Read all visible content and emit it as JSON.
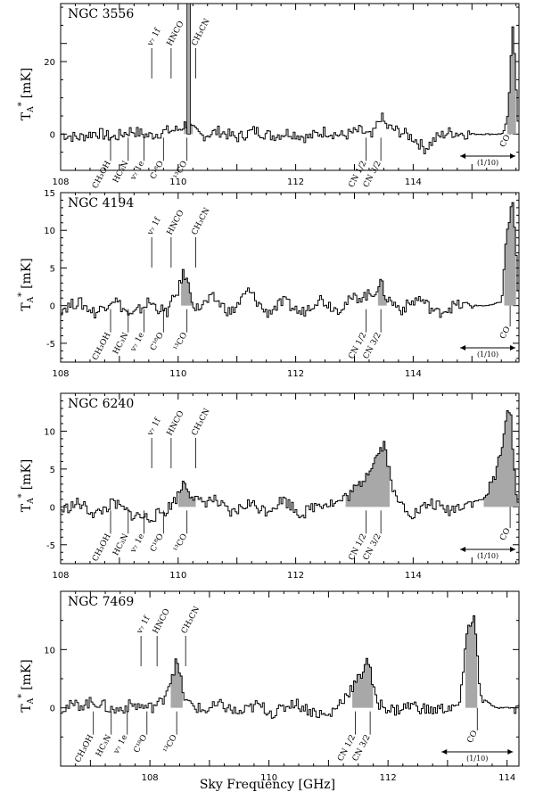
{
  "figure": {
    "xlabel": "Sky Frequency [GHz]",
    "ylabel_main": "T",
    "ylabel_sub": "A",
    "ylabel_sup": "*",
    "ylabel_unit": "[mK]"
  },
  "chart_data": [
    {
      "type": "line",
      "title": "NGC 3556",
      "xlim": [
        108,
        115.8
      ],
      "ylim": [
        -10,
        36
      ],
      "xticks": [
        108,
        110,
        112,
        114
      ],
      "yticks": [
        0,
        20
      ],
      "arrow_range": [
        114.8,
        116.0
      ],
      "arrow_note": "(1/10)",
      "series": [
        {
          "x": [
            108.0,
            108.3,
            108.6,
            108.9,
            109.2,
            109.5,
            109.8,
            110.0,
            110.15,
            110.25,
            110.4,
            110.7,
            111.0,
            111.3,
            111.6,
            111.9,
            112.2,
            112.5,
            112.8,
            113.1,
            113.3,
            113.45,
            113.55,
            113.8,
            114.0,
            114.2,
            114.4,
            114.6,
            115.0,
            115.3,
            115.5,
            115.6,
            115.7,
            115.8
          ],
          "values": [
            0,
            -1,
            0.5,
            -1,
            1,
            -0.5,
            0.8,
            1.2,
            3,
            1,
            -0.5,
            0.8,
            -1,
            1,
            -0.5,
            0.5,
            -1,
            0.8,
            -0.5,
            1,
            -1,
            5,
            2,
            0.5,
            -1,
            -4,
            -1,
            0.5,
            0,
            0,
            0,
            2,
            30,
            0
          ]
        }
      ],
      "fill_regions": [
        [
          110.1,
          110.25
        ],
        [
          115.6,
          115.75
        ]
      ],
      "tall_peaks": [
        {
          "x": 110.18,
          "value": 36
        }
      ],
      "labels_above": [
        {
          "text": "v₇ 1f",
          "x": 109.55
        },
        {
          "text": "HNCO",
          "x": 109.88
        },
        {
          "text": "CH₃CN",
          "x": 110.3
        }
      ],
      "labels_below": [
        {
          "text": "CH₃OH",
          "x": 108.85
        },
        {
          "text": "HC₃N",
          "x": 109.15
        },
        {
          "text": "v₇ 1e",
          "x": 109.42
        },
        {
          "text": "C¹⁸O",
          "x": 109.75
        },
        {
          "text": "¹³CO",
          "x": 110.15
        },
        {
          "text": "CN 1/2",
          "x": 113.2
        },
        {
          "text": "CN 3/2",
          "x": 113.45
        },
        {
          "text": "CO",
          "x": 115.65
        }
      ]
    },
    {
      "type": "line",
      "title": "NGC 4194",
      "xlim": [
        108,
        115.8
      ],
      "ylim": [
        -7.5,
        15
      ],
      "xticks": [
        108,
        110,
        112,
        114
      ],
      "yticks": [
        -5,
        0,
        5,
        10,
        15
      ],
      "arrow_range": [
        114.8,
        116.0
      ],
      "arrow_note": "(1/10)",
      "series": [
        {
          "x": [
            108.0,
            108.3,
            108.6,
            108.9,
            109.2,
            109.5,
            109.8,
            110.0,
            110.1,
            110.2,
            110.3,
            110.6,
            110.9,
            111.2,
            111.5,
            111.8,
            112.1,
            112.4,
            112.7,
            113.0,
            113.3,
            113.45,
            113.55,
            113.8,
            114.1,
            114.4,
            114.7,
            115.0,
            115.3,
            115.5,
            115.6,
            115.7,
            115.8
          ],
          "values": [
            -0.5,
            0.5,
            -1,
            1,
            -1.5,
            0.5,
            -1,
            2,
            4.5,
            2,
            -0.5,
            1,
            -1,
            2,
            -1,
            0.5,
            -1,
            1,
            -0.5,
            1,
            1.5,
            3,
            1,
            -0.5,
            1,
            -1,
            0,
            0,
            0,
            0.5,
            10,
            14,
            0
          ]
        }
      ],
      "fill_regions": [
        [
          110.05,
          110.25
        ],
        [
          113.4,
          113.55
        ],
        [
          115.55,
          115.75
        ]
      ],
      "labels_above": [
        {
          "text": "v₇ 1f",
          "x": 109.55
        },
        {
          "text": "HNCO",
          "x": 109.88
        },
        {
          "text": "CH₃CN",
          "x": 110.3
        }
      ],
      "labels_below": [
        {
          "text": "CH₃OH",
          "x": 108.85
        },
        {
          "text": "HC₃N",
          "x": 109.15
        },
        {
          "text": "v₇ 1e",
          "x": 109.42
        },
        {
          "text": "C¹⁸O",
          "x": 109.75
        },
        {
          "text": "¹³CO",
          "x": 110.15
        },
        {
          "text": "CN 1/2",
          "x": 113.2
        },
        {
          "text": "CN 3/2",
          "x": 113.45
        },
        {
          "text": "CO",
          "x": 115.65
        }
      ]
    },
    {
      "type": "line",
      "title": "NGC 6240",
      "xlim": [
        108,
        115.8
      ],
      "ylim": [
        -7.5,
        15
      ],
      "xticks": [
        108,
        110,
        112,
        114
      ],
      "yticks": [
        -5,
        0,
        5,
        10
      ],
      "arrow_range": [
        114.8,
        116.0
      ],
      "arrow_note": "(1/10)",
      "series": [
        {
          "x": [
            108.0,
            108.3,
            108.6,
            108.9,
            109.2,
            109.5,
            109.8,
            110.0,
            110.1,
            110.2,
            110.35,
            110.6,
            110.9,
            111.2,
            111.5,
            111.8,
            112.1,
            112.4,
            112.7,
            112.9,
            113.1,
            113.25,
            113.4,
            113.5,
            113.7,
            114.0,
            114.3,
            114.6,
            114.9,
            115.2,
            115.4,
            115.55,
            115.65,
            115.75,
            115.8
          ],
          "values": [
            -0.5,
            0.5,
            -1,
            0.5,
            -1,
            -1.5,
            -0.5,
            1.5,
            3.5,
            2,
            0.5,
            1,
            -1,
            0.5,
            -0.5,
            1,
            -1,
            0.5,
            0.5,
            1.5,
            3,
            5,
            7,
            8.5,
            1,
            -1,
            0.5,
            -0.5,
            0.5,
            1,
            4,
            10,
            13.5,
            2,
            0
          ]
        }
      ],
      "fill_regions": [
        [
          110.0,
          110.3
        ],
        [
          112.85,
          113.6
        ],
        [
          115.2,
          115.8
        ]
      ],
      "labels_above": [
        {
          "text": "v₇ 1f",
          "x": 109.55
        },
        {
          "text": "HNCO",
          "x": 109.88
        },
        {
          "text": "CH₃CN",
          "x": 110.3
        }
      ],
      "labels_below": [
        {
          "text": "CH₃OH",
          "x": 108.85
        },
        {
          "text": "HC₃N",
          "x": 109.15
        },
        {
          "text": "v₇ 1e",
          "x": 109.42
        },
        {
          "text": "C¹⁸O",
          "x": 109.75
        },
        {
          "text": "¹³CO",
          "x": 110.15
        },
        {
          "text": "CN 1/2",
          "x": 113.2
        },
        {
          "text": "CN 3/2",
          "x": 113.45
        },
        {
          "text": "CO",
          "x": 115.65
        }
      ]
    },
    {
      "type": "line",
      "title": "NGC 7469",
      "xlim": [
        106.5,
        114.2
      ],
      "ylim": [
        -10,
        20
      ],
      "xticks": [
        108,
        110,
        112,
        114
      ],
      "yticks": [
        0,
        10
      ],
      "arrow_range": [
        112.9,
        114.1
      ],
      "arrow_note": "(1/10)",
      "series": [
        {
          "x": [
            106.5,
            106.8,
            107.1,
            107.4,
            107.7,
            108.0,
            108.2,
            108.35,
            108.45,
            108.6,
            108.9,
            109.2,
            109.5,
            109.8,
            110.1,
            110.4,
            110.7,
            111.0,
            111.2,
            111.4,
            111.55,
            111.65,
            111.8,
            112.1,
            112.4,
            112.7,
            113.0,
            113.2,
            113.35,
            113.45,
            113.55,
            113.8,
            114.0,
            114.2
          ],
          "values": [
            0,
            0.5,
            1,
            -0.5,
            0.5,
            0,
            1,
            5,
            8,
            1,
            -0.5,
            0.5,
            -1,
            0.5,
            -1,
            1,
            -0.5,
            -1.5,
            1,
            3.5,
            5.5,
            9,
            1,
            -0.5,
            0.5,
            -0.5,
            0,
            0.5,
            14,
            16,
            2,
            0,
            0,
            0
          ]
        }
      ],
      "fill_regions": [
        [
          108.35,
          108.55
        ],
        [
          111.4,
          111.75
        ],
        [
          113.3,
          113.5
        ]
      ],
      "labels_above": [
        {
          "text": "v₇ 1f",
          "x": 107.85
        },
        {
          "text": "HNCO",
          "x": 108.12
        },
        {
          "text": "CH₃CN",
          "x": 108.6
        }
      ],
      "labels_below": [
        {
          "text": "CH₃OH",
          "x": 107.05
        },
        {
          "text": "HC₃N",
          "x": 107.35
        },
        {
          "text": "v₇ 1e",
          "x": 107.62
        },
        {
          "text": "C¹⁸O",
          "x": 107.95
        },
        {
          "text": "¹³CO",
          "x": 108.45
        },
        {
          "text": "CN 1/2",
          "x": 111.45
        },
        {
          "text": "CN 3/2",
          "x": 111.7
        },
        {
          "text": "CO",
          "x": 113.5
        }
      ]
    }
  ]
}
